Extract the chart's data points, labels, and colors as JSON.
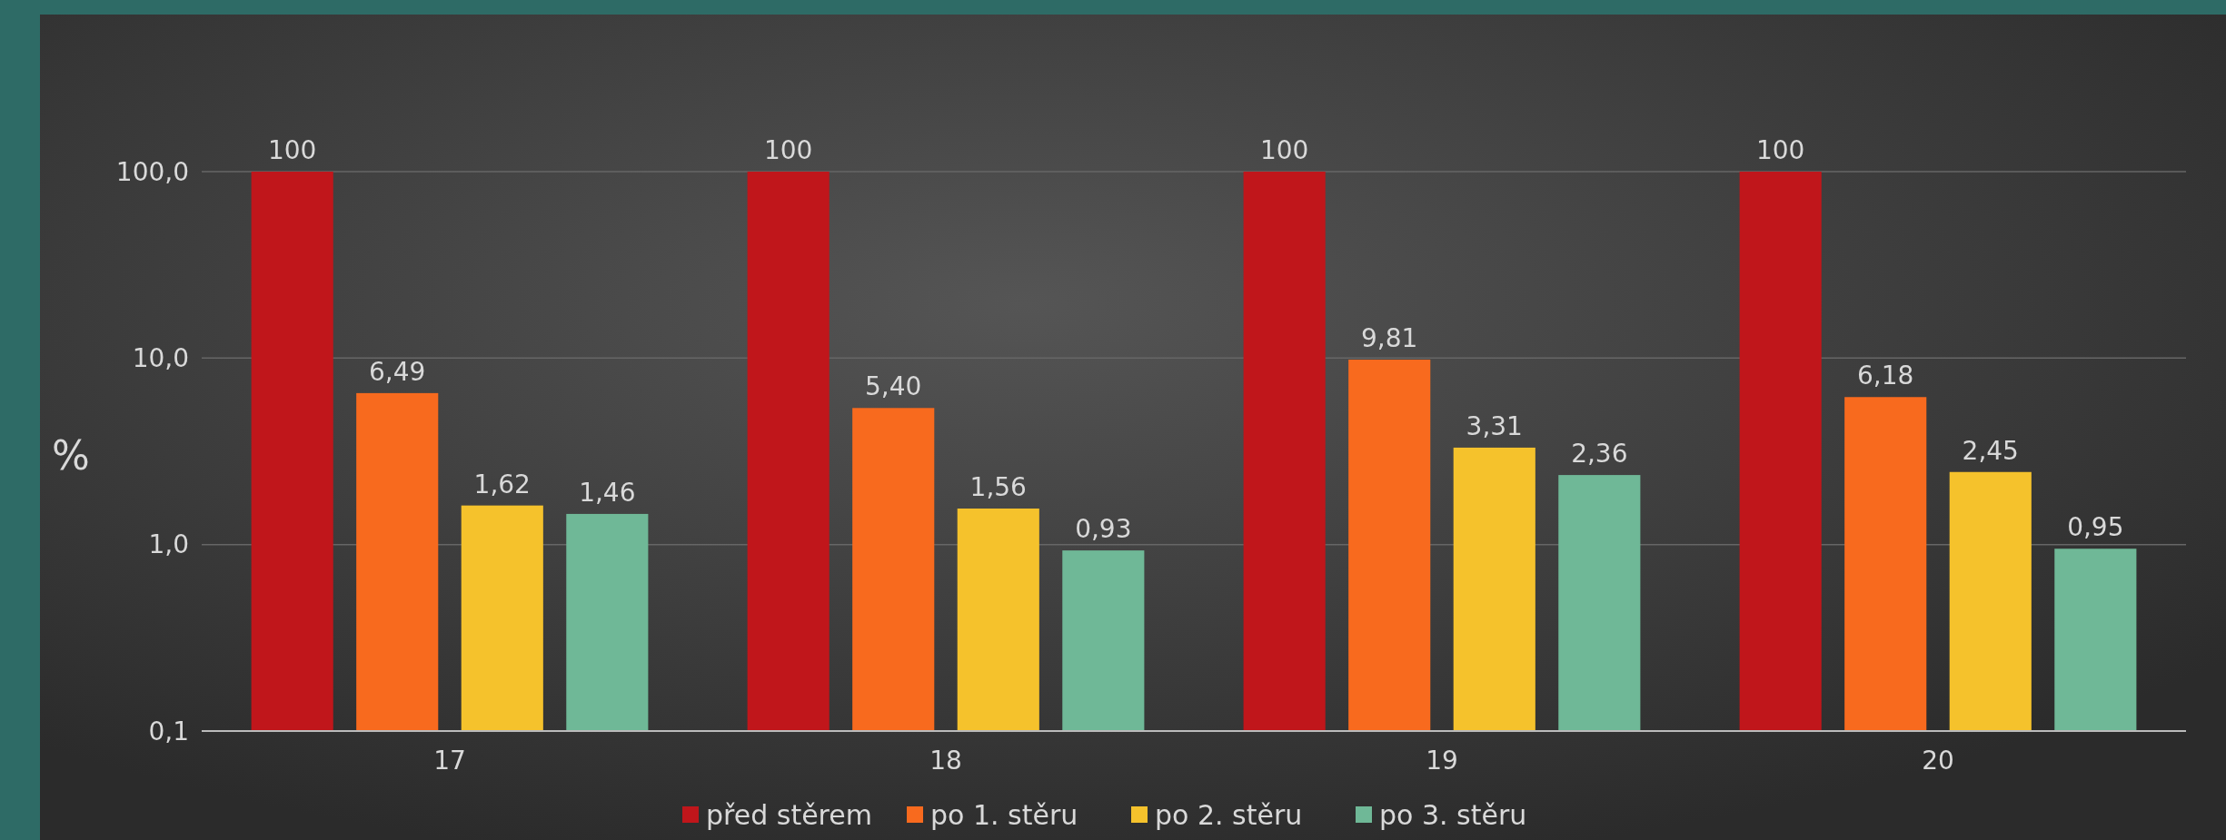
{
  "chart_data": {
    "type": "bar",
    "ylabel": "%",
    "categories": [
      "17",
      "18",
      "19",
      "20"
    ],
    "series": [
      {
        "name": "před stěrem",
        "color": "#c0161b",
        "values": [
          100,
          100,
          100,
          100
        ],
        "value_labels": [
          "100",
          "100",
          "100",
          "100"
        ]
      },
      {
        "name": "po 1. stěru",
        "color": "#f86a1e",
        "values": [
          6.49,
          5.4,
          9.81,
          6.18
        ],
        "value_labels": [
          "6,49",
          "5,40",
          "9,81",
          "6,18"
        ]
      },
      {
        "name": "po 2. stěru",
        "color": "#f5c22c",
        "values": [
          1.62,
          1.56,
          3.31,
          2.45
        ],
        "value_labels": [
          "1,62",
          "1,56",
          "3,31",
          "2,45"
        ]
      },
      {
        "name": "po 3. stěru",
        "color": "#6fb897",
        "values": [
          1.46,
          0.93,
          2.36,
          0.95
        ],
        "value_labels": [
          "1,46",
          "0,93",
          "2,36",
          "0,95"
        ]
      }
    ],
    "log": true,
    "ylim": [
      0.1,
      100
    ],
    "yticks": [
      {
        "value": 0.1,
        "label": "0,1"
      },
      {
        "value": 1,
        "label": "1,0"
      },
      {
        "value": 10,
        "label": "10,0"
      },
      {
        "value": 100,
        "label": "100,0"
      }
    ],
    "grid": "y",
    "legend": "bottom"
  }
}
